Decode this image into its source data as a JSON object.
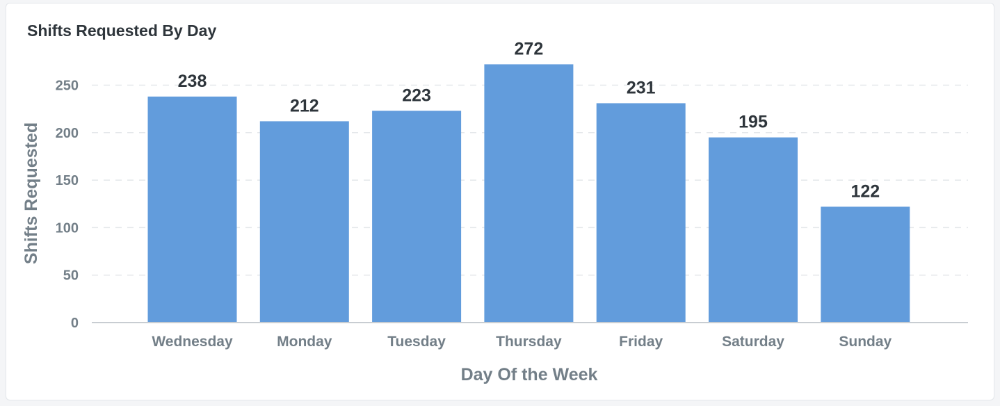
{
  "card": {
    "title": "Shifts Requested By Day"
  },
  "chart_data": {
    "type": "bar",
    "categories": [
      "Wednesday",
      "Monday",
      "Tuesday",
      "Thursday",
      "Friday",
      "Saturday",
      "Sunday"
    ],
    "values": [
      238,
      212,
      223,
      272,
      231,
      195,
      122
    ],
    "title": "Shifts Requested By Day",
    "xlabel": "Day Of the Week",
    "ylabel": "Shifts Requested",
    "ylim": [
      0,
      275
    ],
    "yticks": [
      0,
      50,
      100,
      150,
      200,
      250
    ],
    "grid": true,
    "data_labels": true,
    "legend": "none",
    "colors": {
      "bar": "#629cdc",
      "grid": "#e4e7ea",
      "axis": "#c8cdd2",
      "tick_text": "#737f88",
      "data_label_text": "#2e353b"
    }
  }
}
